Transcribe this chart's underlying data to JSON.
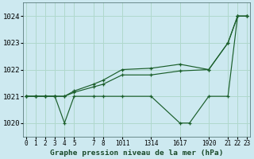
{
  "title": "Graphe pression niveau de la mer (hPa)",
  "bg_color": "#cde9f0",
  "grid_color": "#b0d8cc",
  "line_color": "#1a5e2a",
  "ylim": [
    1019.5,
    1024.5
  ],
  "yticks": [
    1020,
    1021,
    1022,
    1023,
    1024
  ],
  "xlim": [
    -0.3,
    23.3
  ],
  "line1_x": [
    0,
    1,
    2,
    3,
    4,
    5,
    7,
    8,
    10,
    13,
    16,
    17,
    19,
    21,
    22,
    23
  ],
  "line1_y": [
    1021,
    1021,
    1021,
    1021,
    1020,
    1021,
    1021,
    1021,
    1021,
    1021,
    1020,
    1020,
    1021,
    1021,
    1024,
    1024
  ],
  "line2_x": [
    0,
    1,
    2,
    3,
    4,
    5,
    7,
    8,
    10,
    13,
    16,
    19,
    21,
    22,
    23
  ],
  "line2_y": [
    1021,
    1021,
    1021,
    1021,
    1021,
    1021.15,
    1021.35,
    1021.45,
    1021.8,
    1021.8,
    1021.95,
    1022.0,
    1023.0,
    1024.0,
    1024.0
  ],
  "line3_x": [
    0,
    1,
    2,
    3,
    4,
    5,
    7,
    8,
    10,
    13,
    16,
    19,
    21,
    22,
    23
  ],
  "line3_y": [
    1021,
    1021,
    1021,
    1021,
    1021,
    1021.2,
    1021.45,
    1021.6,
    1022.0,
    1022.05,
    1022.2,
    1022.0,
    1023.0,
    1024.0,
    1024.0
  ],
  "xtick_pos": [
    0,
    1,
    2,
    3,
    4,
    5,
    7,
    8,
    10,
    13,
    16,
    19,
    21,
    22,
    23
  ],
  "xtick_labels": [
    "0",
    "1",
    "2",
    "3",
    "4",
    "5",
    "7",
    "8",
    "1011",
    "1314",
    "1617",
    "1920",
    "21",
    "22",
    "23"
  ]
}
